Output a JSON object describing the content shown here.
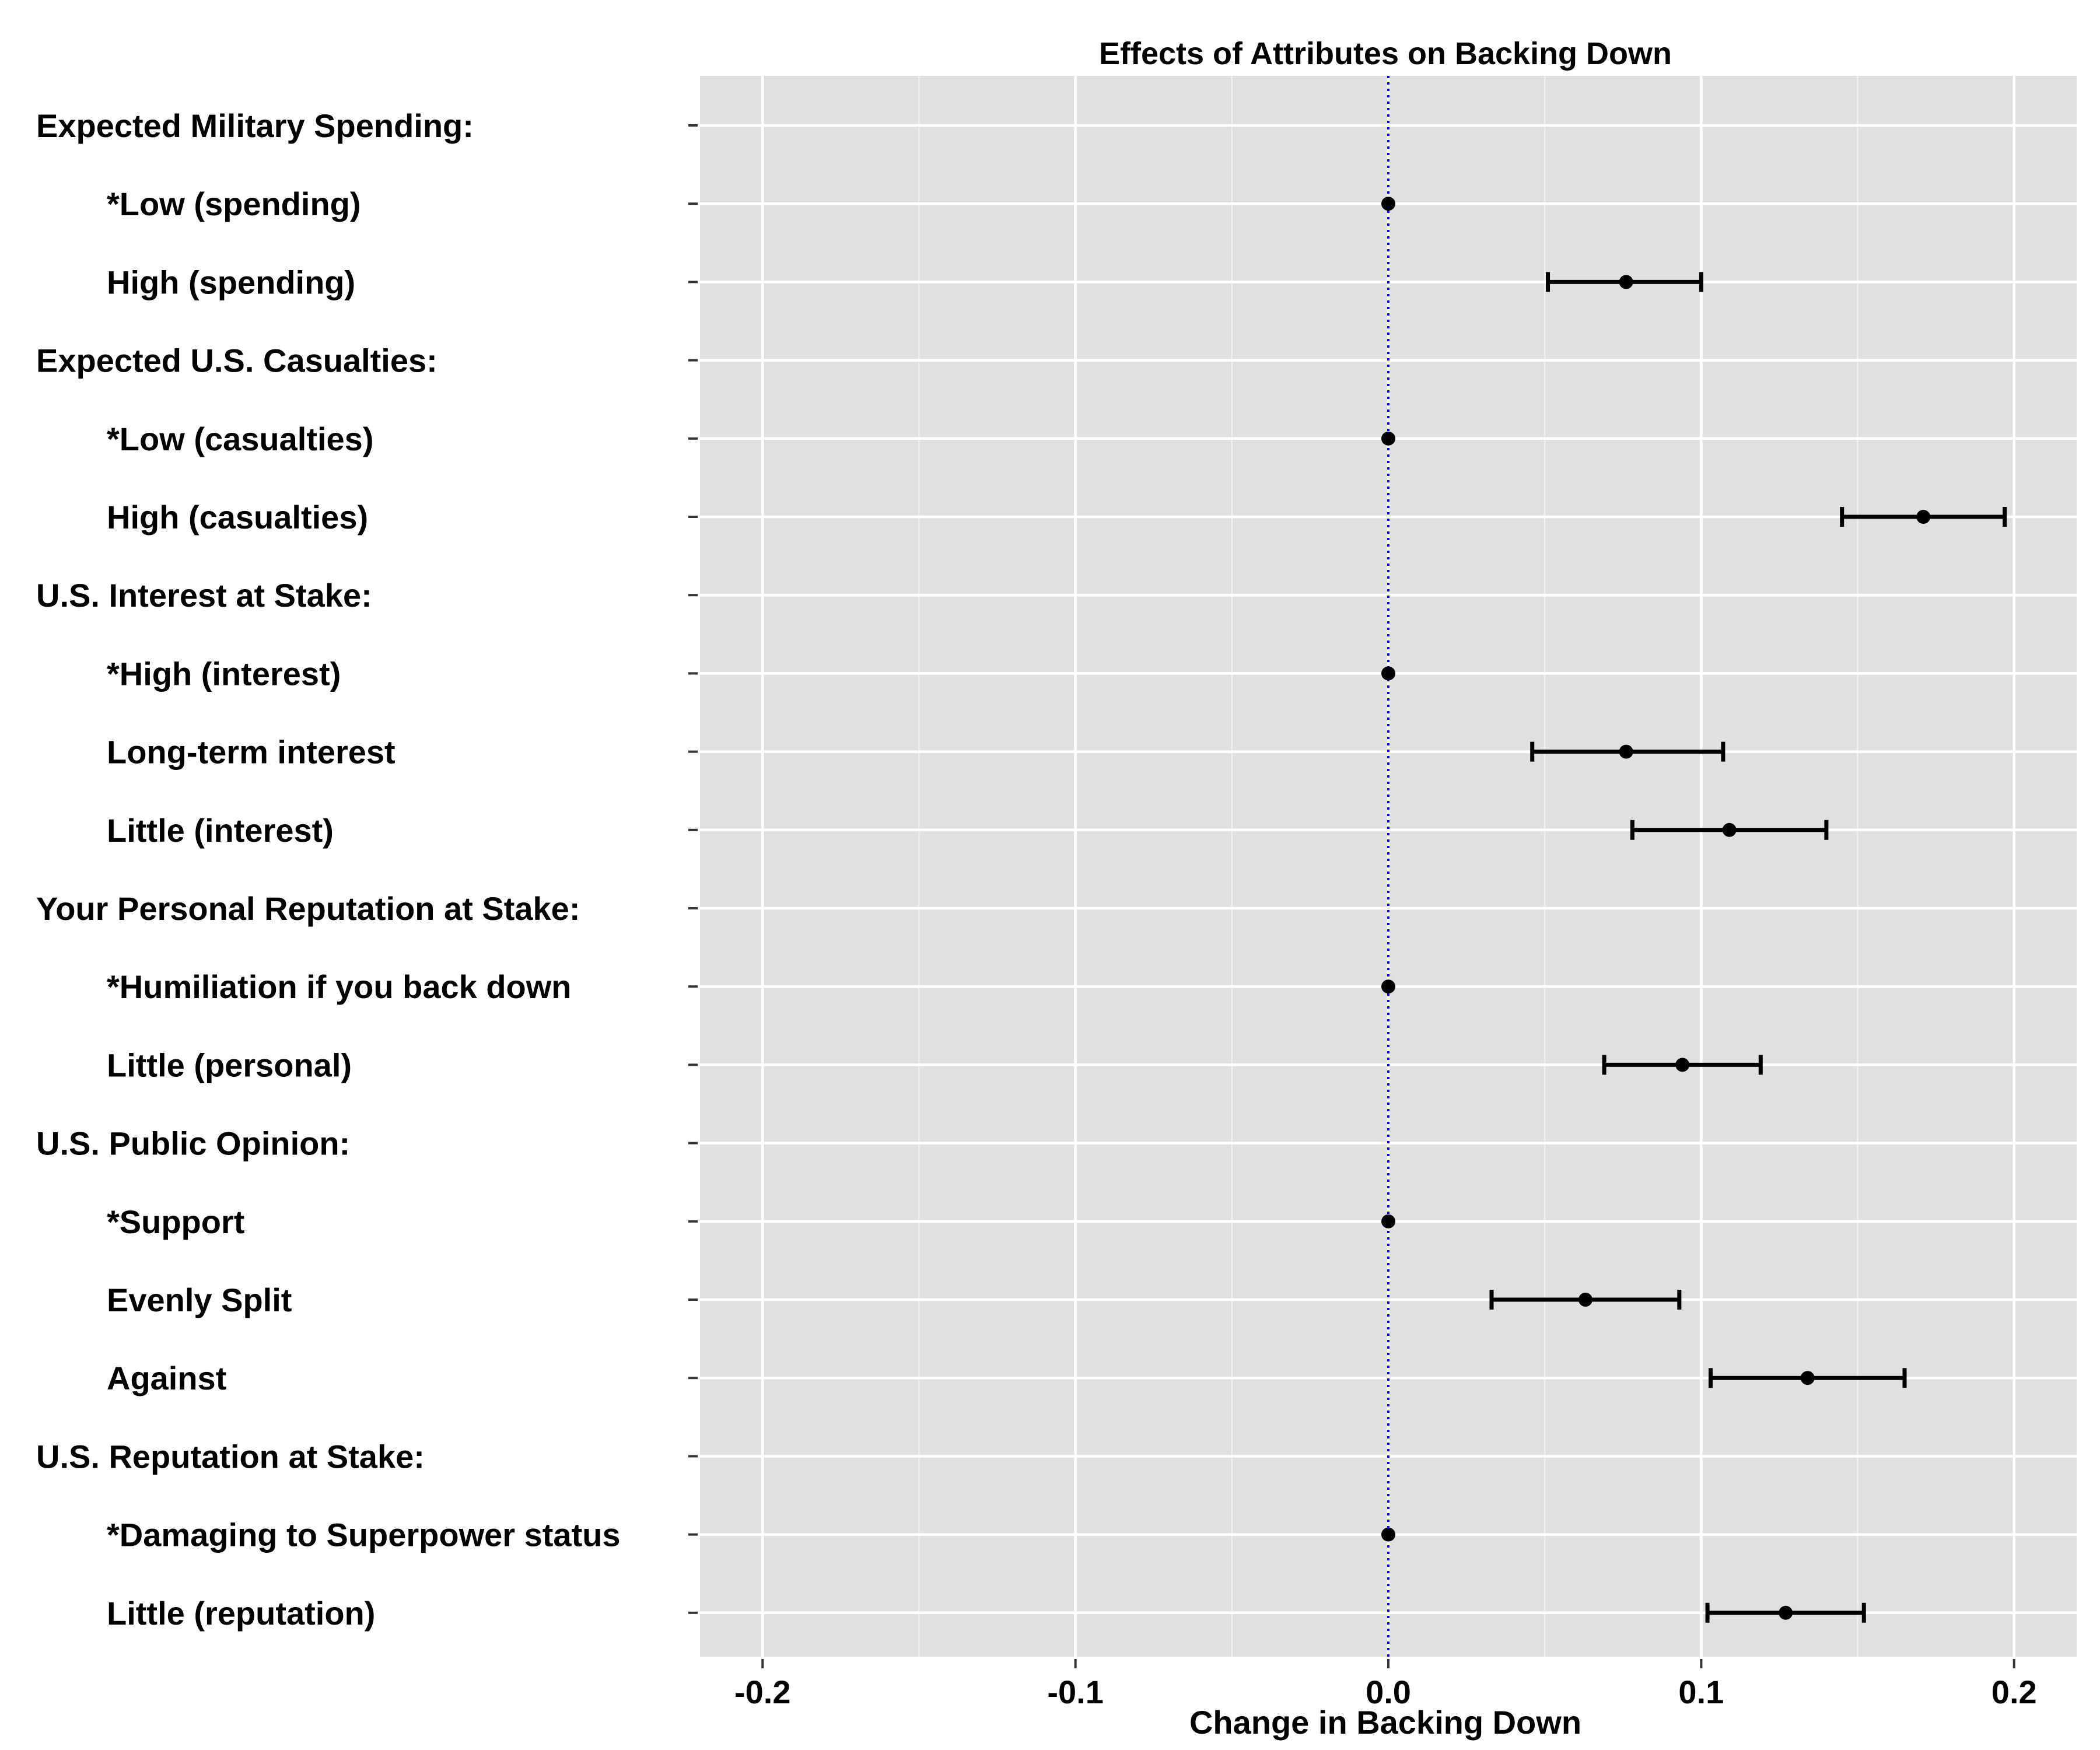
{
  "chart_data": {
    "type": "scatter",
    "title": "Effects of Attributes on Backing Down",
    "xlabel": "Change in Backing Down",
    "ylabel": "",
    "xlim": [
      -0.22,
      0.22
    ],
    "x_ticks": [
      -0.2,
      -0.1,
      0.0,
      0.1,
      0.2
    ],
    "x_tick_labels": [
      "-0.2",
      "-0.1",
      "0.0",
      "0.1",
      "0.2"
    ],
    "reference_line": {
      "x": 0.0,
      "style": "dotted",
      "color": "#0000ff"
    },
    "grid": true,
    "background": "#e0e0e0",
    "point_color": "#000000",
    "rows": [
      {
        "label": "Expected Military Spending:",
        "header": true,
        "estimate": null,
        "lower": null,
        "upper": null
      },
      {
        "label": "*Low (spending)",
        "header": false,
        "estimate": 0.0,
        "lower": 0.0,
        "upper": 0.0
      },
      {
        "label": "High (spending)",
        "header": false,
        "estimate": 0.076,
        "lower": 0.051,
        "upper": 0.1
      },
      {
        "label": "Expected U.S. Casualties:",
        "header": true,
        "estimate": null,
        "lower": null,
        "upper": null
      },
      {
        "label": "*Low (casualties)",
        "header": false,
        "estimate": 0.0,
        "lower": 0.0,
        "upper": 0.0
      },
      {
        "label": "High (casualties)",
        "header": false,
        "estimate": 0.171,
        "lower": 0.145,
        "upper": 0.197
      },
      {
        "label": "U.S. Interest at Stake:",
        "header": true,
        "estimate": null,
        "lower": null,
        "upper": null
      },
      {
        "label": "*High (interest)",
        "header": false,
        "estimate": 0.0,
        "lower": 0.0,
        "upper": 0.0
      },
      {
        "label": "Long-term interest",
        "header": false,
        "estimate": 0.076,
        "lower": 0.046,
        "upper": 0.107
      },
      {
        "label": "Little (interest)",
        "header": false,
        "estimate": 0.109,
        "lower": 0.078,
        "upper": 0.14
      },
      {
        "label": "Your Personal Reputation at Stake:",
        "header": true,
        "estimate": null,
        "lower": null,
        "upper": null
      },
      {
        "label": "*Humiliation if you back down",
        "header": false,
        "estimate": 0.0,
        "lower": 0.0,
        "upper": 0.0
      },
      {
        "label": "Little (personal)",
        "header": false,
        "estimate": 0.094,
        "lower": 0.069,
        "upper": 0.119
      },
      {
        "label": "U.S. Public Opinion:",
        "header": true,
        "estimate": null,
        "lower": null,
        "upper": null
      },
      {
        "label": "*Support",
        "header": false,
        "estimate": 0.0,
        "lower": 0.0,
        "upper": 0.0
      },
      {
        "label": "Evenly Split",
        "header": false,
        "estimate": 0.063,
        "lower": 0.033,
        "upper": 0.093
      },
      {
        "label": "Against",
        "header": false,
        "estimate": 0.134,
        "lower": 0.103,
        "upper": 0.165
      },
      {
        "label": "U.S. Reputation at Stake:",
        "header": true,
        "estimate": null,
        "lower": null,
        "upper": null
      },
      {
        "label": "*Damaging to Superpower status",
        "header": false,
        "estimate": 0.0,
        "lower": 0.0,
        "upper": 0.0
      },
      {
        "label": "Little (reputation)",
        "header": false,
        "estimate": 0.127,
        "lower": 0.102,
        "upper": 0.152
      }
    ]
  }
}
